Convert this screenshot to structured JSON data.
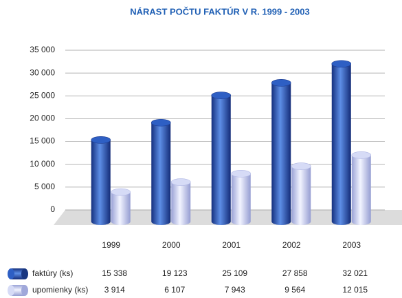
{
  "chart_data": {
    "type": "bar",
    "title": "NÁRAST POČTU FAKTÚR V R. 1999 - 2003",
    "categories": [
      "1999",
      "2000",
      "2001",
      "2002",
      "2003"
    ],
    "series": [
      {
        "name": "faktúry (ks)",
        "color": "#1f4aa8",
        "values": [
          15338,
          19123,
          25109,
          27858,
          32021
        ],
        "value_labels": [
          "15 338",
          "19 123",
          "25 109",
          "27 858",
          "32 021"
        ]
      },
      {
        "name": "upomienky (ks)",
        "color": "#aab2e2",
        "values": [
          3914,
          6107,
          7943,
          9564,
          12015
        ],
        "value_labels": [
          "3 914",
          "6 107",
          "7 943",
          "9 564",
          "12 015"
        ]
      }
    ],
    "ylim": [
      0,
      35000
    ],
    "yticks": [
      0,
      {
        "value": 5000,
        "label": "5 000"
      },
      {
        "value": 10000,
        "label": "10 000"
      },
      {
        "value": 15000,
        "label": "15 000"
      },
      {
        "value": 20000,
        "label": "20 000"
      },
      {
        "value": 25000,
        "label": "25 000"
      },
      {
        "value": 30000,
        "label": "30 000"
      },
      {
        "value": 35000,
        "label": "35 000"
      }
    ],
    "grid": true
  }
}
